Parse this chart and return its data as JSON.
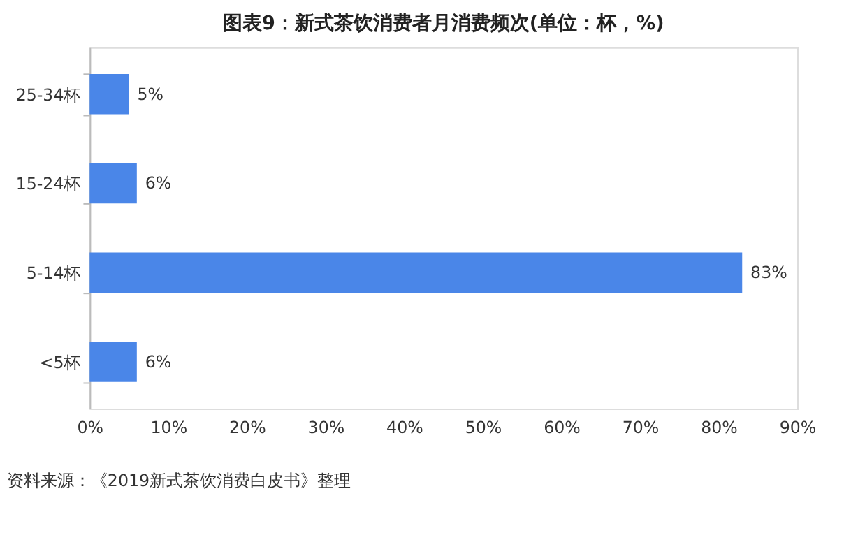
{
  "chart_data": {
    "type": "bar",
    "orientation": "horizontal",
    "title": "图表9：新式茶饮消费者月消费频次(单位：杯，%)",
    "categories": [
      "25-34杯",
      "15-24杯",
      "5-14杯",
      "<5杯"
    ],
    "values": [
      5,
      6,
      83,
      6
    ],
    "value_labels": [
      "5%",
      "6%",
      "83%",
      "6%"
    ],
    "color": "#4a86e8",
    "xlim": [
      0,
      90
    ],
    "xticks": [
      {
        "value": 0,
        "label": "0%"
      },
      {
        "value": 10,
        "label": "10%"
      },
      {
        "value": 20,
        "label": "20%"
      },
      {
        "value": 30,
        "label": "30%"
      },
      {
        "value": 40,
        "label": "40%"
      },
      {
        "value": 50,
        "label": "50%"
      },
      {
        "value": 60,
        "label": "60%"
      },
      {
        "value": 70,
        "label": "70%"
      },
      {
        "value": 80,
        "label": "80%"
      },
      {
        "value": 90,
        "label": "90%"
      }
    ],
    "grid": false,
    "annotations": [
      "资料来源：《2019新式茶饮消费白皮书》整理"
    ]
  }
}
